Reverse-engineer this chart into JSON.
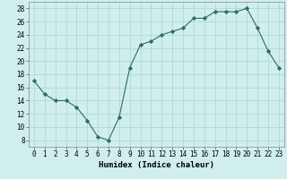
{
  "x": [
    0,
    1,
    2,
    3,
    4,
    5,
    6,
    7,
    8,
    9,
    10,
    11,
    12,
    13,
    14,
    15,
    16,
    17,
    18,
    19,
    20,
    21,
    22,
    23
  ],
  "y": [
    17,
    15,
    14,
    14,
    13,
    11,
    8.5,
    8,
    11.5,
    19,
    22.5,
    23,
    24,
    24.5,
    25,
    26.5,
    26.5,
    27.5,
    27.5,
    27.5,
    28,
    25,
    21.5,
    19
  ],
  "line_color": "#2d6e5e",
  "marker": "D",
  "marker_size": 2.2,
  "bg_color": "#d0eeee",
  "grid_color": "#b0d8d8",
  "xlabel": "Humidex (Indice chaleur)",
  "xlim": [
    -0.5,
    23.5
  ],
  "ylim": [
    7,
    29
  ],
  "yticks": [
    8,
    10,
    12,
    14,
    16,
    18,
    20,
    22,
    24,
    26,
    28
  ],
  "xticks": [
    0,
    1,
    2,
    3,
    4,
    5,
    6,
    7,
    8,
    9,
    10,
    11,
    12,
    13,
    14,
    15,
    16,
    17,
    18,
    19,
    20,
    21,
    22,
    23
  ],
  "xlabel_fontsize": 6.5,
  "tick_fontsize": 5.5
}
